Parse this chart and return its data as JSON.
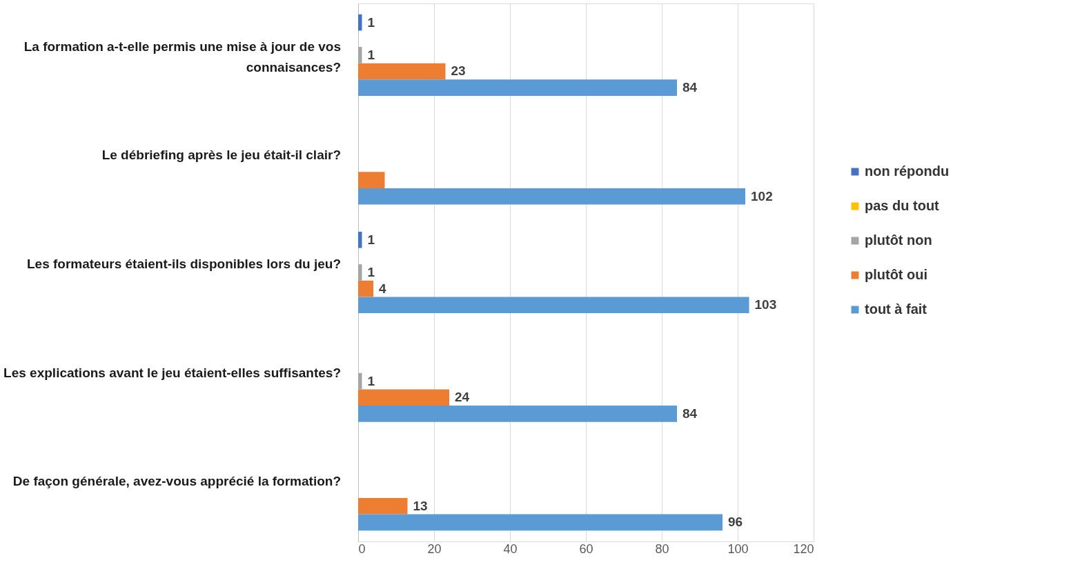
{
  "chart_data": {
    "type": "bar",
    "orientation": "horizontal",
    "categories": [
      "La formation a-t-elle permis une mise à jour de vos connaisances?",
      "Le débriefing après le jeu était-il clair?",
      "Les formateurs étaient-ils disponibles lors du jeu?",
      "Les explications avant le jeu étaient-elles suffisantes?",
      "De façon générale, avez-vous apprécié la formation?"
    ],
    "series": [
      {
        "name": "non répondu",
        "color": "#4472c4",
        "values": [
          1,
          null,
          1,
          null,
          null
        ],
        "value_labels": [
          "1",
          null,
          "1",
          null,
          null
        ]
      },
      {
        "name": "pas du tout",
        "color": "#ffc000",
        "values": [
          null,
          null,
          null,
          null,
          null
        ]
      },
      {
        "name": "plutôt non",
        "color": "#a5a5a5",
        "values": [
          1,
          null,
          1,
          1,
          null
        ],
        "value_labels": [
          "1",
          null,
          "1",
          "1",
          null
        ]
      },
      {
        "name": "plutôt oui",
        "color": "#ed7d31",
        "values": [
          23,
          7,
          4,
          24,
          13
        ],
        "value_labels": [
          "23",
          null,
          "4",
          "24",
          "13"
        ]
      },
      {
        "name": "tout à fait",
        "color": "#5b9bd5",
        "values": [
          84,
          102,
          103,
          84,
          96
        ],
        "value_labels": [
          "84",
          "102",
          "103",
          "84",
          "96"
        ]
      }
    ],
    "xlim": [
      0,
      120
    ],
    "xticks": [
      0,
      20,
      40,
      60,
      80,
      100,
      120
    ],
    "grid": "x",
    "legend": "right"
  }
}
